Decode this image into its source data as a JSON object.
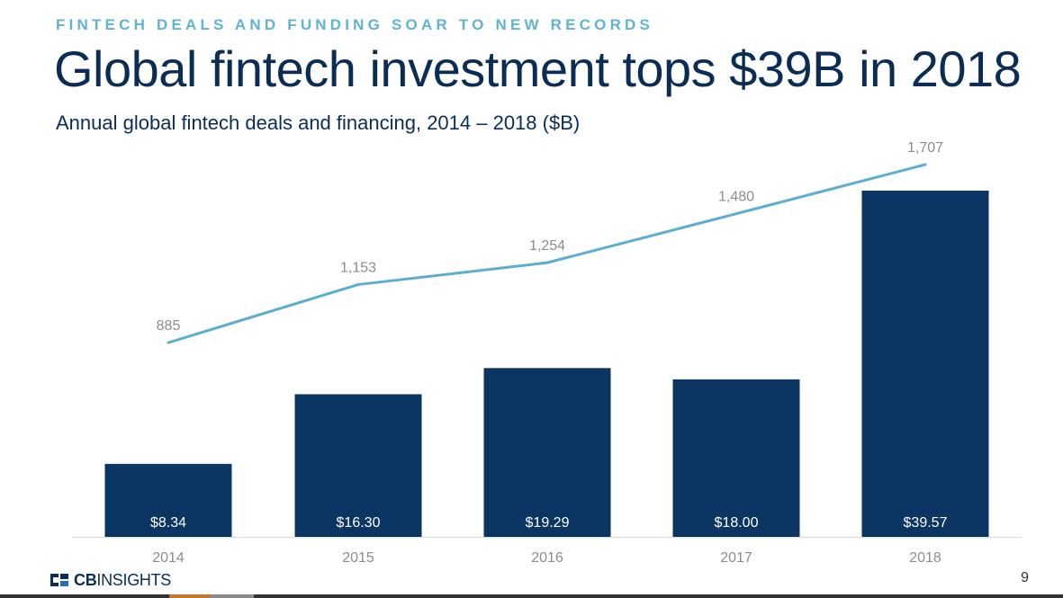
{
  "header": {
    "kicker": "FINTECH DEALS AND FUNDING SOAR TO NEW RECORDS",
    "title": "Global fintech investment tops $39B in 2018",
    "subtitle": "Annual global fintech deals and financing, 2014 – 2018 ($B)"
  },
  "chart_data": {
    "type": "bar",
    "title": "Global fintech investment tops $39B in 2018",
    "subtitle": "Annual global fintech deals and financing, 2014 – 2018 ($B)",
    "categories": [
      "2014",
      "2015",
      "2016",
      "2017",
      "2018"
    ],
    "series": [
      {
        "type": "bar",
        "values": [
          8.34,
          16.3,
          19.29,
          18.0,
          39.57
        ],
        "labels": [
          "$8.34",
          "$16.30",
          "$19.29",
          "$18.00",
          "$39.57"
        ],
        "color": "#0b3563"
      },
      {
        "type": "line",
        "values": [
          885,
          1153,
          1254,
          1480,
          1707
        ],
        "labels": [
          "885",
          "1,153",
          "1,254",
          "1,480",
          "1,707"
        ],
        "color": "#5aaed0"
      }
    ],
    "bar_ylim": [
      0,
      40
    ],
    "line_ylim": [
      0,
      1920
    ],
    "grid": false,
    "legend": "none"
  },
  "colors": {
    "title": "#0b2d55",
    "kicker": "#5fb3d3",
    "bar": "#0b3563",
    "line": "#5aaed0",
    "label": "#8c8c8c"
  },
  "footer": {
    "logo_bold": "CB",
    "logo_rest": "INSIGHTS",
    "logo_icon": "cbinsights-logo-icon",
    "page_number": "9"
  }
}
